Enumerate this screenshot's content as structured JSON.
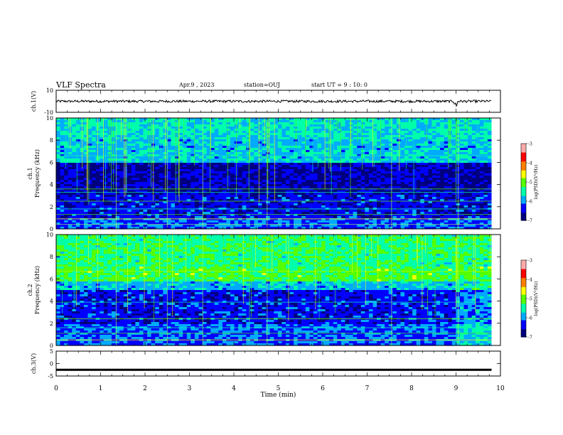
{
  "header": {
    "title": "VLF Spectra",
    "date": "Apr.9 , 2023",
    "station": "station=OUJ",
    "start": "start UT = 9 : 10: 0"
  },
  "chart_data": [
    {
      "type": "line",
      "panel": "ch1-waveform",
      "ylabel": "ch.1(V)",
      "ylim": [
        -10,
        10
      ],
      "yticks": [
        "10",
        "-10"
      ],
      "xlim": [
        0,
        10
      ],
      "baseline": 0,
      "dropouts_min": [
        9.0
      ]
    },
    {
      "type": "heatmap",
      "panel": "ch1-spectrogram",
      "ylabel": "ch.1\nFrequency (kHz)",
      "ylim": [
        0,
        10
      ],
      "yticks": [
        "0",
        "2",
        "4",
        "6",
        "8",
        "10"
      ],
      "xlim": [
        0,
        9.8
      ],
      "colorbar": {
        "label": "log(PSD)(V²/Hz)",
        "range": [
          -7,
          -3
        ],
        "ticks": [
          "-3",
          "-4",
          "-5",
          "-6",
          "-7"
        ]
      }
    },
    {
      "type": "heatmap",
      "panel": "ch2-spectrogram",
      "ylabel": "ch.2\nFrequency (kHz)",
      "ylim": [
        0,
        10
      ],
      "yticks": [
        "0",
        "2",
        "4",
        "6",
        "8",
        "10"
      ],
      "xlim": [
        0,
        9.8
      ],
      "colorbar": {
        "label": "log(PSD)(V²/Hz)",
        "range": [
          -7,
          -3
        ],
        "ticks": [
          "-3",
          "-4",
          "-5",
          "-6",
          "-7"
        ]
      }
    },
    {
      "type": "line",
      "panel": "ch3-waveform",
      "ylabel": "ch.3(V)",
      "ylim": [
        -5,
        5
      ],
      "yticks": [
        "5",
        "0",
        "-5"
      ],
      "xlim": [
        0,
        10
      ],
      "baseline": -2.5
    }
  ],
  "xaxis": {
    "label": "Time (min)",
    "range": [
      0,
      10
    ],
    "ticks": [
      "0",
      "1",
      "2",
      "3",
      "4",
      "5",
      "6",
      "7",
      "8",
      "9",
      "10"
    ]
  },
  "colors": {
    "colormap": [
      "#00007f",
      "#0000ff",
      "#00aaff",
      "#00ffaa",
      "#55ff00",
      "#ffff00",
      "#ff7f00",
      "#ff0000",
      "#ffaaaa"
    ]
  }
}
